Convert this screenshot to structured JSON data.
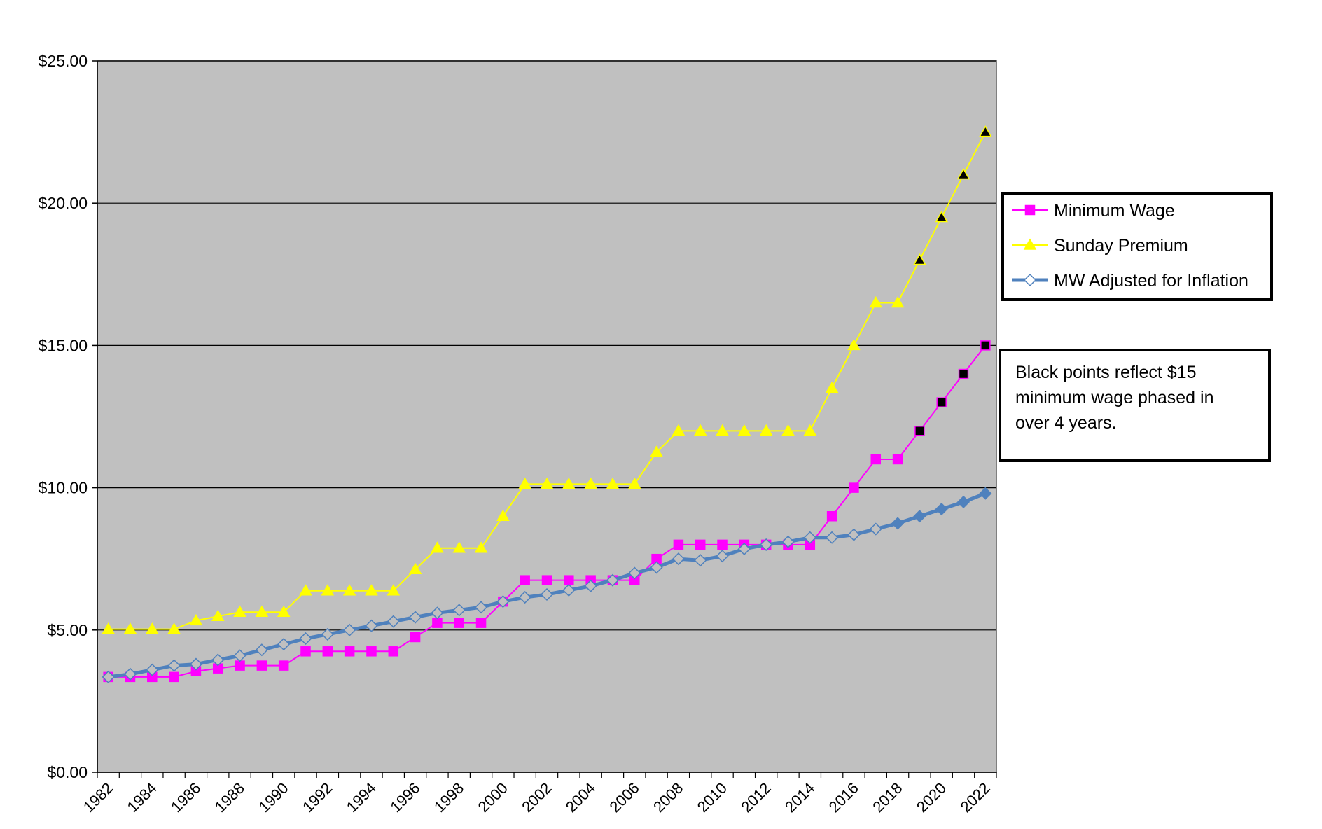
{
  "chart_data": {
    "type": "line",
    "title": "",
    "xlabel": "",
    "ylabel": "",
    "ylim": [
      0,
      25
    ],
    "y_ticks": [
      0,
      5,
      10,
      15,
      20,
      25
    ],
    "y_tick_labels": [
      "$0.00",
      "$5.00",
      "$10.00",
      "$15.00",
      "$20.00",
      "$25.00"
    ],
    "grid": true,
    "plot_background": "#c0c0c0",
    "x": [
      1982,
      1983,
      1984,
      1985,
      1986,
      1987,
      1988,
      1989,
      1990,
      1991,
      1992,
      1993,
      1994,
      1995,
      1996,
      1997,
      1998,
      1999,
      2000,
      2001,
      2002,
      2003,
      2004,
      2005,
      2006,
      2007,
      2008,
      2009,
      2010,
      2011,
      2012,
      2013,
      2014,
      2015,
      2016,
      2017,
      2018,
      2019,
      2020,
      2021,
      2022
    ],
    "x_tick_labels": [
      "1982",
      "1984",
      "1986",
      "1988",
      "1990",
      "1992",
      "1994",
      "1996",
      "1998",
      "2000",
      "2002",
      "2004",
      "2006",
      "2008",
      "2010",
      "2012",
      "2014",
      "2016",
      "2018",
      "2020",
      "2022"
    ],
    "legend_position": "right",
    "series": [
      {
        "name": "Minimum Wage",
        "color": "#ff00ff",
        "marker": "square",
        "line_width": 2,
        "black_points_from": 2019,
        "values": [
          3.35,
          3.35,
          3.35,
          3.35,
          3.55,
          3.65,
          3.75,
          3.75,
          3.75,
          4.25,
          4.25,
          4.25,
          4.25,
          4.25,
          4.75,
          5.25,
          5.25,
          5.25,
          6.0,
          6.75,
          6.75,
          6.75,
          6.75,
          6.75,
          6.75,
          7.5,
          8.0,
          8.0,
          8.0,
          8.0,
          8.0,
          8.0,
          8.0,
          9.0,
          10.0,
          11.0,
          11.0,
          12.0,
          13.0,
          14.0,
          15.0
        ]
      },
      {
        "name": "Sunday Premium",
        "color": "#ffff00",
        "marker": "triangle",
        "line_width": 2,
        "black_points_from": 2019,
        "values": [
          5.03,
          5.03,
          5.03,
          5.03,
          5.33,
          5.48,
          5.63,
          5.63,
          5.63,
          6.38,
          6.38,
          6.38,
          6.38,
          6.38,
          7.13,
          7.88,
          7.88,
          7.88,
          9.0,
          10.13,
          10.13,
          10.13,
          10.13,
          10.13,
          10.13,
          11.25,
          12.0,
          12.0,
          12.0,
          12.0,
          12.0,
          12.0,
          12.0,
          13.5,
          15.0,
          16.5,
          16.5,
          18.0,
          19.5,
          21.0,
          22.5
        ]
      },
      {
        "name": "MW Adjusted for Inflation",
        "color": "#4f81bd",
        "marker": "diamond",
        "line_width": 5,
        "filled_points_from": 2018,
        "values": [
          3.35,
          3.45,
          3.6,
          3.75,
          3.8,
          3.95,
          4.1,
          4.3,
          4.5,
          4.7,
          4.85,
          5.0,
          5.15,
          5.3,
          5.45,
          5.6,
          5.7,
          5.8,
          6.0,
          6.15,
          6.25,
          6.4,
          6.55,
          6.75,
          7.0,
          7.2,
          7.5,
          7.45,
          7.6,
          7.85,
          8.0,
          8.1,
          8.25,
          8.25,
          8.35,
          8.55,
          8.75,
          9.0,
          9.25,
          9.5,
          9.8
        ]
      }
    ],
    "note": {
      "lines": [
        "Black points reflect $15",
        "minimum wage phased in",
        "over 4 years."
      ]
    }
  }
}
